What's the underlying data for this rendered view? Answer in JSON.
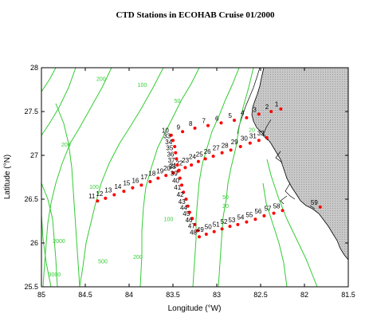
{
  "chart_data": {
    "type": "scatter",
    "title": "CTD Stations in ECOHAB  Cruise 01/2000",
    "xlabel": "Longitude (°W)",
    "ylabel": "Latitude (°N)",
    "xlim": [
      85,
      81.5
    ],
    "ylim": [
      25.5,
      28
    ],
    "x_ticks": [
      {
        "value": 85,
        "label": "85"
      },
      {
        "value": 84.5,
        "label": "84.5"
      },
      {
        "value": 84,
        "label": "84"
      },
      {
        "value": 83.5,
        "label": "83.5"
      },
      {
        "value": 83,
        "label": "83"
      },
      {
        "value": 82.5,
        "label": "82.5"
      },
      {
        "value": 82,
        "label": "82"
      },
      {
        "value": 81.5,
        "label": "81.5"
      }
    ],
    "y_ticks": [
      {
        "value": 28,
        "label": "28"
      },
      {
        "value": 27.5,
        "label": "27.5"
      },
      {
        "value": 27,
        "label": "27"
      },
      {
        "value": 26.5,
        "label": "26.5"
      },
      {
        "value": 26,
        "label": "26"
      },
      {
        "value": 25.5,
        "label": "25.5"
      }
    ],
    "stations": [
      {
        "id": "1",
        "lon": 82.27,
        "lat": 27.53
      },
      {
        "id": "2",
        "lon": 82.38,
        "lat": 27.5
      },
      {
        "id": "3",
        "lon": 82.52,
        "lat": 27.47
      },
      {
        "id": "4",
        "lon": 82.66,
        "lat": 27.43
      },
      {
        "id": "5",
        "lon": 82.8,
        "lat": 27.4
      },
      {
        "id": "6",
        "lon": 82.95,
        "lat": 27.37
      },
      {
        "id": "7",
        "lon": 83.1,
        "lat": 27.34
      },
      {
        "id": "8",
        "lon": 83.25,
        "lat": 27.31
      },
      {
        "id": "9",
        "lon": 83.39,
        "lat": 27.27
      },
      {
        "id": "10",
        "lon": 83.52,
        "lat": 27.23
      },
      {
        "id": "11",
        "lon": 84.36,
        "lat": 26.48
      },
      {
        "id": "12",
        "lon": 84.27,
        "lat": 26.51
      },
      {
        "id": "13",
        "lon": 84.17,
        "lat": 26.55
      },
      {
        "id": "14",
        "lon": 84.06,
        "lat": 26.59
      },
      {
        "id": "15",
        "lon": 83.96,
        "lat": 26.63
      },
      {
        "id": "16",
        "lon": 83.86,
        "lat": 26.66
      },
      {
        "id": "17",
        "lon": 83.76,
        "lat": 26.7
      },
      {
        "id": "18",
        "lon": 83.67,
        "lat": 26.74
      },
      {
        "id": "19",
        "lon": 83.58,
        "lat": 26.77
      },
      {
        "id": "20",
        "lon": 83.5,
        "lat": 26.8
      },
      {
        "id": "21",
        "lon": 83.43,
        "lat": 26.83
      },
      {
        "id": "22",
        "lon": 83.36,
        "lat": 26.86
      },
      {
        "id": "23",
        "lon": 83.29,
        "lat": 26.89
      },
      {
        "id": "24",
        "lon": 83.21,
        "lat": 26.93
      },
      {
        "id": "25",
        "lon": 83.13,
        "lat": 26.96
      },
      {
        "id": "26",
        "lon": 83.04,
        "lat": 26.99
      },
      {
        "id": "27",
        "lon": 82.94,
        "lat": 27.03
      },
      {
        "id": "28",
        "lon": 82.84,
        "lat": 27.06
      },
      {
        "id": "29",
        "lon": 82.73,
        "lat": 27.1
      },
      {
        "id": "30",
        "lon": 82.62,
        "lat": 27.14
      },
      {
        "id": "31",
        "lon": 82.52,
        "lat": 27.17
      },
      {
        "id": "32",
        "lon": 82.43,
        "lat": 27.2
      },
      {
        "id": "33",
        "lon": 83.5,
        "lat": 27.17
      },
      {
        "id": "34",
        "lon": 83.48,
        "lat": 27.1
      },
      {
        "id": "35",
        "lon": 83.47,
        "lat": 27.03
      },
      {
        "id": "36",
        "lon": 83.46,
        "lat": 26.96
      },
      {
        "id": "37",
        "lon": 83.45,
        "lat": 26.89
      },
      {
        "id": "38",
        "lon": 83.44,
        "lat": 26.82
      },
      {
        "id": "39",
        "lon": 83.42,
        "lat": 26.74
      },
      {
        "id": "40",
        "lon": 83.4,
        "lat": 26.66
      },
      {
        "id": "41",
        "lon": 83.38,
        "lat": 26.58
      },
      {
        "id": "42",
        "lon": 83.35,
        "lat": 26.5
      },
      {
        "id": "43",
        "lon": 83.33,
        "lat": 26.42
      },
      {
        "id": "44",
        "lon": 83.31,
        "lat": 26.35
      },
      {
        "id": "45",
        "lon": 83.28,
        "lat": 26.28
      },
      {
        "id": "46",
        "lon": 83.25,
        "lat": 26.21
      },
      {
        "id": "47",
        "lon": 83.22,
        "lat": 26.14
      },
      {
        "id": "48",
        "lon": 83.2,
        "lat": 26.07
      },
      {
        "id": "49",
        "lon": 83.12,
        "lat": 26.1
      },
      {
        "id": "50",
        "lon": 83.03,
        "lat": 26.13
      },
      {
        "id": "51",
        "lon": 82.94,
        "lat": 26.16
      },
      {
        "id": "52",
        "lon": 82.85,
        "lat": 26.19
      },
      {
        "id": "53",
        "lon": 82.76,
        "lat": 26.21
      },
      {
        "id": "54",
        "lon": 82.66,
        "lat": 26.24
      },
      {
        "id": "55",
        "lon": 82.56,
        "lat": 26.27
      },
      {
        "id": "56",
        "lon": 82.46,
        "lat": 26.31
      },
      {
        "id": "57",
        "lon": 82.35,
        "lat": 26.34
      },
      {
        "id": "58",
        "lon": 82.25,
        "lat": 26.37
      },
      {
        "id": "59",
        "lon": 81.82,
        "lat": 26.41
      }
    ],
    "contour_labels": [
      {
        "text": "200",
        "lon": 84.32,
        "lat": 27.85
      },
      {
        "text": "100",
        "lon": 83.85,
        "lat": 27.78
      },
      {
        "text": "50",
        "lon": 83.45,
        "lat": 27.6
      },
      {
        "text": "20",
        "lon": 82.6,
        "lat": 27.27
      },
      {
        "text": "200",
        "lon": 84.72,
        "lat": 27.1
      },
      {
        "text": "100",
        "lon": 84.4,
        "lat": 26.62
      },
      {
        "text": "2000",
        "lon": 84.8,
        "lat": 26.0
      },
      {
        "text": "500",
        "lon": 84.3,
        "lat": 25.77
      },
      {
        "text": "200",
        "lon": 83.9,
        "lat": 25.82
      },
      {
        "text": "100",
        "lon": 83.55,
        "lat": 26.25
      },
      {
        "text": "50",
        "lon": 82.9,
        "lat": 26.5
      },
      {
        "text": "20",
        "lon": 82.9,
        "lat": 26.4
      },
      {
        "text": "3000",
        "lon": 84.85,
        "lat": 25.62
      }
    ],
    "station_color": "#ff0000",
    "contour_color": "#33cc33",
    "land_color": "#cccccc",
    "grid": false
  }
}
